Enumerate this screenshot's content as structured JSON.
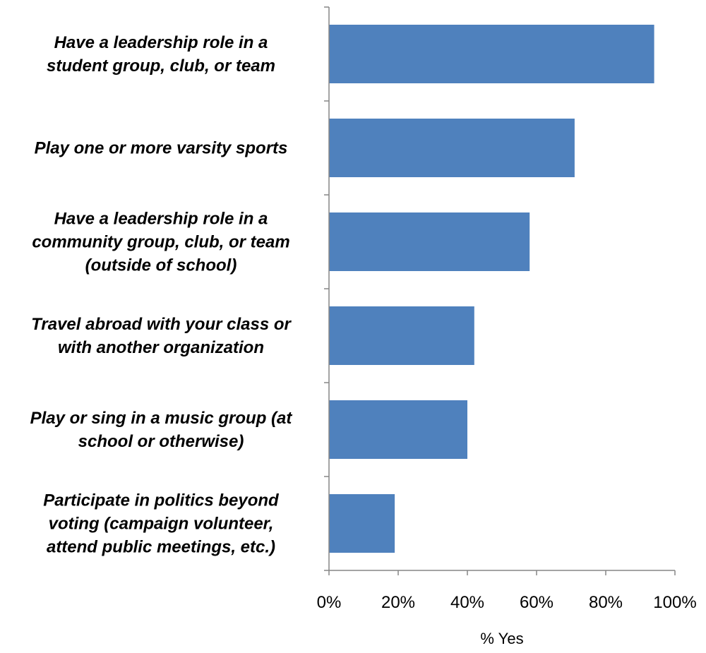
{
  "chart_data": {
    "type": "bar",
    "orientation": "horizontal",
    "categories": [
      [
        "Have a leadership role in a",
        "student group, club, or team"
      ],
      [
        "Play one or more varsity sports"
      ],
      [
        "Have a leadership role in a",
        "community group, club, or team",
        "(outside of school)"
      ],
      [
        "Travel abroad with your class or",
        "with another organization"
      ],
      [
        "Play or sing in a music group (at",
        "school or otherwise)"
      ],
      [
        "Participate in politics beyond",
        "voting (campaign volunteer,",
        "attend public meetings, etc.)"
      ]
    ],
    "values": [
      94,
      71,
      58,
      42,
      40,
      19
    ],
    "xlim": [
      0,
      100
    ],
    "xticks": [
      0,
      20,
      40,
      60,
      80,
      100
    ],
    "xtick_labels": [
      "0%",
      "20%",
      "40%",
      "60%",
      "80%",
      "100%"
    ],
    "xlabel": "% Yes",
    "bar_color": "#4f81bd",
    "grid": false,
    "legend": "none"
  }
}
